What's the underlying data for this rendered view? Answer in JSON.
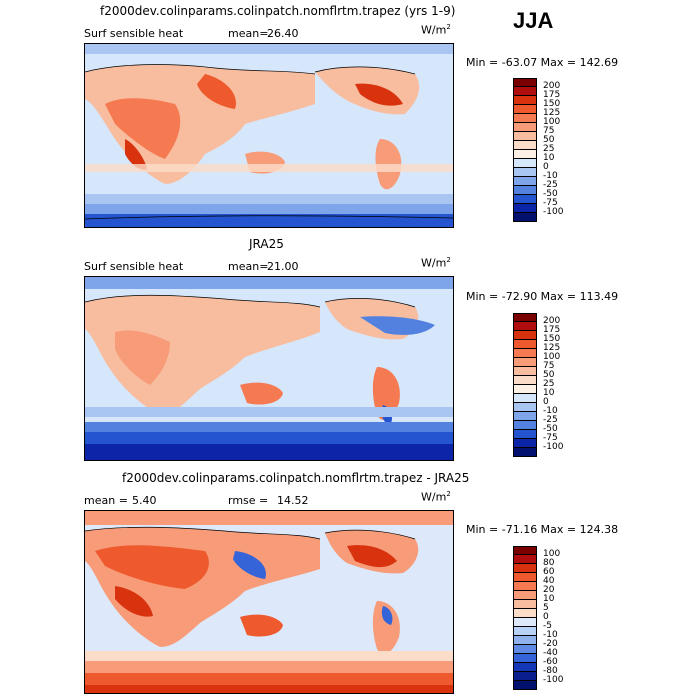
{
  "season": "JJA",
  "units_base": "W/m",
  "units_exp": "2",
  "panels": [
    {
      "title": "f2000dev.colinparams.colinpatch.nomflrtm.trapez (yrs 1-9)",
      "left_label": "Surf sensible heat",
      "stat_label": "mean=",
      "stat_value": "26.40",
      "minmax": "Min = -63.07 Max = 142.69",
      "levels": [
        "200",
        "175",
        "150",
        "125",
        "100",
        "75",
        "50",
        "25",
        "10",
        "0",
        "-10",
        "-25",
        "-50",
        "-75",
        "-100"
      ],
      "colors": [
        "#7a0000",
        "#b00e0e",
        "#d8320f",
        "#ee5a2e",
        "#f57a52",
        "#f79b78",
        "#f8bd9f",
        "#fbdcc8",
        "#fdf1e6",
        "#d6e6fb",
        "#a9c6f2",
        "#7ea5ea",
        "#5281e0",
        "#2454d0",
        "#0c25a8",
        "#02106e"
      ]
    },
    {
      "title": "JRA25",
      "left_label": "Surf sensible heat",
      "stat_label": "mean=",
      "stat_value": "21.00",
      "minmax": "Min = -72.90 Max = 113.49",
      "levels": [
        "200",
        "175",
        "150",
        "125",
        "100",
        "75",
        "50",
        "25",
        "10",
        "0",
        "-10",
        "-25",
        "-50",
        "-75",
        "-100"
      ],
      "colors": [
        "#7a0000",
        "#b00e0e",
        "#d8320f",
        "#ee5a2e",
        "#f57a52",
        "#f79b78",
        "#f8bd9f",
        "#fbdcc8",
        "#fdf1e6",
        "#d6e6fb",
        "#a9c6f2",
        "#7ea5ea",
        "#5281e0",
        "#2454d0",
        "#0c25a8",
        "#02106e"
      ]
    },
    {
      "title": "f2000dev.colinparams.colinpatch.nomflrtm.trapez - JRA25",
      "mean_label": "mean =",
      "mean_value": "5.40",
      "rmse_label": "rmse =",
      "rmse_value": "14.52",
      "minmax": "Min = -71.16 Max = 124.38",
      "levels": [
        "100",
        "80",
        "60",
        "40",
        "20",
        "10",
        "5",
        "0",
        "-5",
        "-10",
        "-20",
        "-40",
        "-60",
        "-80",
        "-100"
      ],
      "colors": [
        "#7a0000",
        "#b00e0e",
        "#d8320f",
        "#ee5a2e",
        "#f57a52",
        "#f79b78",
        "#f8bd9f",
        "#fbdcc8",
        "#dde9fb",
        "#b9d1f5",
        "#8fb2ee",
        "#5f8ae3",
        "#3563d8",
        "#1438b8",
        "#0a1f8c",
        "#02106e"
      ]
    }
  ],
  "chart_data": [
    {
      "type": "heatmap",
      "title": "f2000dev.colinparams.colinpatch.nomflrtm.trapez (yrs 1-9)",
      "variable": "Surf sensible heat",
      "units": "W/m^2",
      "mean": 26.4,
      "min": -63.07,
      "max": 142.69,
      "contour_levels": [
        -100,
        -75,
        -50,
        -25,
        -10,
        0,
        10,
        25,
        50,
        75,
        100,
        125,
        150,
        175,
        200
      ]
    },
    {
      "type": "heatmap",
      "title": "JRA25",
      "variable": "Surf sensible heat",
      "units": "W/m^2",
      "mean": 21.0,
      "min": -72.9,
      "max": 113.49,
      "contour_levels": [
        -100,
        -75,
        -50,
        -25,
        -10,
        0,
        10,
        25,
        50,
        75,
        100,
        125,
        150,
        175,
        200
      ]
    },
    {
      "type": "heatmap",
      "title": "f2000dev.colinparams.colinpatch.nomflrtm.trapez - JRA25",
      "units": "W/m^2",
      "mean": 5.4,
      "rmse": 14.52,
      "min": -71.16,
      "max": 124.38,
      "contour_levels": [
        -100,
        -80,
        -60,
        -40,
        -20,
        -10,
        -5,
        0,
        5,
        10,
        20,
        40,
        60,
        80,
        100
      ]
    }
  ]
}
